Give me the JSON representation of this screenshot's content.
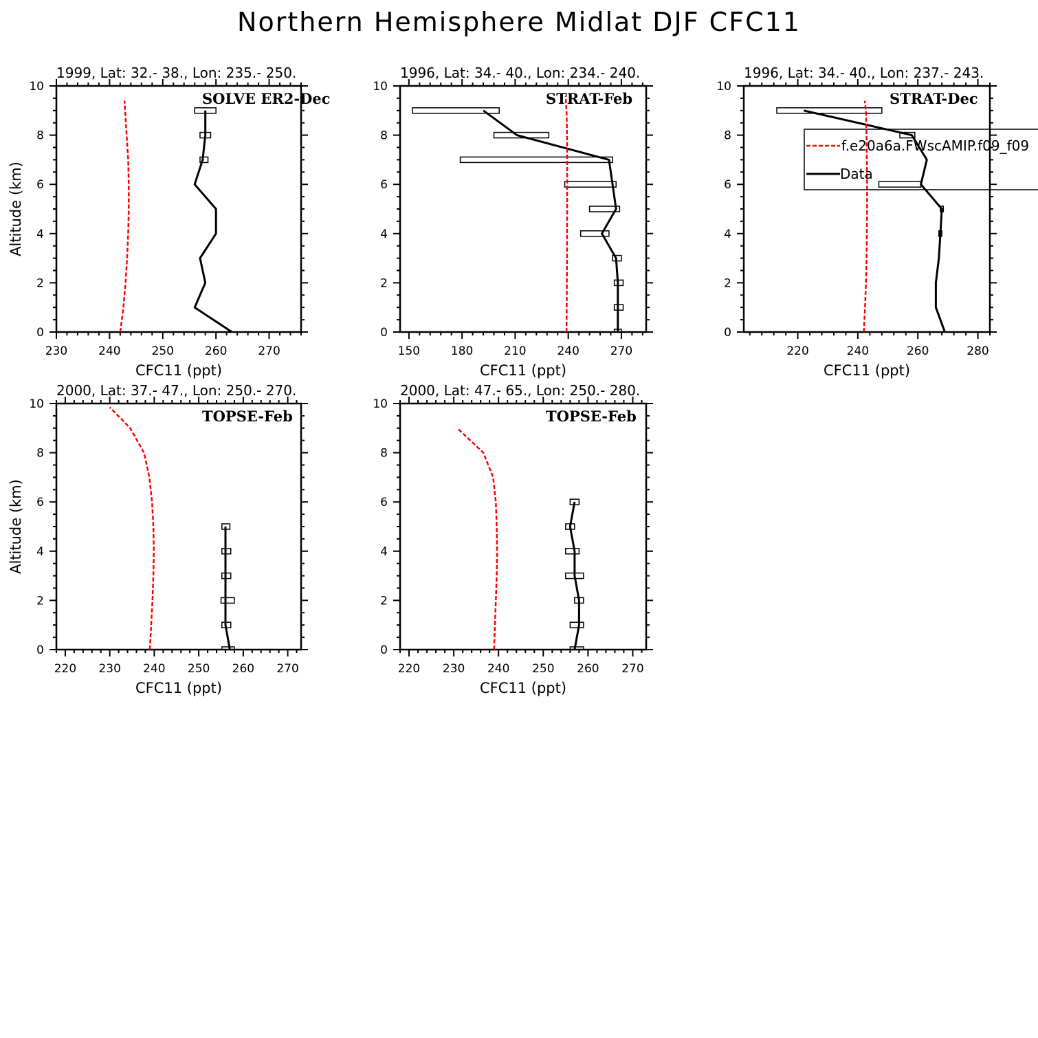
{
  "title": "Northern Hemisphere Midlat DJF CFC11",
  "legend": {
    "model_label": "f.e20a6a.FWscAMIP.f09_f09",
    "data_label": "Data"
  },
  "chart_data": [
    {
      "type": "line",
      "subtitle": "1999, Lat: 32.- 38., Lon: 235.- 250.",
      "campaign": "SOLVE ER2-Dec",
      "xlabel": "CFC11 (ppt)",
      "ylabel": "Altitude (km)",
      "xlim": [
        230,
        276
      ],
      "ylim": [
        0,
        10
      ],
      "xticks": [
        230,
        240,
        250,
        260,
        270
      ],
      "yticks": [
        0,
        2,
        4,
        6,
        8,
        10
      ],
      "model": {
        "x": [
          242.0,
          242.6,
          243.0,
          243.3,
          243.5,
          243.6,
          243.6,
          243.5,
          243.2,
          242.8
        ],
        "y": [
          0,
          1,
          2,
          3,
          4,
          5,
          6,
          7,
          8,
          9.4
        ]
      },
      "data": {
        "x": [
          263.0,
          256.0,
          258.0,
          257.0,
          260.0,
          260.0,
          256.0,
          257.5,
          258.0,
          258.0
        ],
        "y": [
          0,
          1,
          2,
          3,
          4,
          5,
          6,
          7,
          8,
          9
        ]
      },
      "error_bars": [
        {
          "y": 9,
          "lo": 256.0,
          "hi": 260.0
        },
        {
          "y": 8,
          "lo": 257.0,
          "hi": 259.0
        },
        {
          "y": 7,
          "lo": 257.0,
          "hi": 258.5
        }
      ]
    },
    {
      "type": "line",
      "subtitle": "1996, Lat: 34.- 40., Lon: 234.- 240.",
      "campaign": "STRAT-Feb",
      "xlabel": "CFC11 (ppt)",
      "ylabel": "",
      "xlim": [
        145,
        284
      ],
      "ylim": [
        0,
        10
      ],
      "xticks": [
        150,
        180,
        210,
        240,
        270
      ],
      "yticks": [
        0,
        2,
        4,
        6,
        8,
        10
      ],
      "model": {
        "x": [
          239.0,
          239.1,
          239.2,
          239.3,
          239.3,
          239.4,
          239.4,
          239.4,
          239.3,
          239.0,
          238.5
        ],
        "y": [
          0,
          1,
          2,
          3,
          4,
          5,
          6,
          7,
          8,
          9,
          9.6
        ]
      },
      "data": {
        "x": [
          268,
          268,
          268,
          267,
          259,
          267,
          265,
          263,
          211,
          192
        ],
        "y": [
          0,
          1,
          2,
          3,
          4,
          5,
          6,
          7,
          8,
          9
        ]
      },
      "error_bars": [
        {
          "y": 9,
          "lo": 152,
          "hi": 201
        },
        {
          "y": 8,
          "lo": 198,
          "hi": 229
        },
        {
          "y": 7,
          "lo": 179,
          "hi": 265
        },
        {
          "y": 6,
          "lo": 238,
          "hi": 267
        },
        {
          "y": 5,
          "lo": 252,
          "hi": 269
        },
        {
          "y": 4,
          "lo": 247,
          "hi": 263
        },
        {
          "y": 3,
          "lo": 265,
          "hi": 270
        },
        {
          "y": 2,
          "lo": 266,
          "hi": 271
        },
        {
          "y": 1,
          "lo": 266,
          "hi": 271
        },
        {
          "y": 0,
          "lo": 266,
          "hi": 270
        }
      ]
    },
    {
      "type": "line",
      "subtitle": "1996, Lat: 34.- 40., Lon: 237.- 243.",
      "campaign": "STRAT-Dec",
      "xlabel": "CFC11 (ppt)",
      "ylabel": "",
      "xlim": [
        202,
        284
      ],
      "ylim": [
        0,
        10
      ],
      "xticks": [
        220,
        240,
        260,
        280
      ],
      "yticks": [
        0,
        2,
        4,
        6,
        8,
        10
      ],
      "model": {
        "x": [
          242.0,
          242.4,
          242.7,
          242.9,
          243.0,
          243.1,
          243.1,
          243.0,
          242.9,
          242.7,
          242.3
        ],
        "y": [
          0,
          1,
          2,
          3,
          4,
          5,
          6,
          7,
          8,
          9,
          9.4
        ]
      },
      "data": {
        "x": [
          269,
          266,
          266,
          267,
          267.5,
          268,
          261,
          263,
          258,
          222
        ],
        "y": [
          0,
          1,
          2,
          3,
          4,
          5,
          6,
          7,
          8,
          9
        ]
      },
      "error_bars": [
        {
          "y": 9,
          "lo": 213,
          "hi": 248
        },
        {
          "y": 8,
          "lo": 254,
          "hi": 259
        },
        {
          "y": 6,
          "lo": 247,
          "hi": 261
        },
        {
          "y": 5,
          "lo": 267.5,
          "hi": 268.5
        },
        {
          "y": 4,
          "lo": 267,
          "hi": 268
        }
      ]
    },
    {
      "type": "line",
      "subtitle": "2000, Lat: 37.- 47., Lon: 250.- 270.",
      "campaign": "TOPSE-Feb",
      "xlabel": "CFC11 (ppt)",
      "ylabel": "Altitude (km)",
      "xlim": [
        218,
        273
      ],
      "ylim": [
        0,
        10
      ],
      "xticks": [
        220,
        230,
        240,
        250,
        260,
        270
      ],
      "yticks": [
        0,
        2,
        4,
        6,
        8,
        10
      ],
      "model": {
        "x": [
          239.0,
          239.3,
          239.6,
          239.8,
          239.9,
          239.8,
          239.5,
          238.9,
          237.7,
          234.6,
          230.0
        ],
        "y": [
          0,
          1,
          2,
          3,
          4,
          5,
          6,
          7,
          8,
          9,
          9.85
        ]
      },
      "data": {
        "x": [
          257,
          256,
          256,
          256,
          256,
          256
        ],
        "y": [
          0,
          1,
          2,
          3,
          4,
          5
        ]
      },
      "error_bars": [
        {
          "y": 5,
          "lo": 255.2,
          "hi": 257.0
        },
        {
          "y": 4,
          "lo": 255.2,
          "hi": 257.2
        },
        {
          "y": 3,
          "lo": 255.2,
          "hi": 257.2
        },
        {
          "y": 2,
          "lo": 255.0,
          "hi": 258.0
        },
        {
          "y": 1,
          "lo": 255.2,
          "hi": 257.2
        },
        {
          "y": 0,
          "lo": 255.2,
          "hi": 258.0
        }
      ]
    },
    {
      "type": "line",
      "subtitle": "2000, Lat: 47.- 65., Lon: 250.- 280.",
      "campaign": "TOPSE-Feb",
      "xlabel": "CFC11 (ppt)",
      "ylabel": "",
      "xlim": [
        218,
        273
      ],
      "ylim": [
        0,
        10
      ],
      "xticks": [
        220,
        230,
        240,
        250,
        260,
        270
      ],
      "yticks": [
        0,
        2,
        4,
        6,
        8,
        10
      ],
      "model": {
        "x": [
          239.0,
          239.2,
          239.4,
          239.6,
          239.7,
          239.6,
          239.4,
          238.8,
          236.6,
          230.8
        ],
        "y": [
          0,
          1,
          2,
          3,
          4,
          5,
          6,
          7,
          8,
          9
        ]
      },
      "data": {
        "x": [
          257,
          258,
          258,
          257,
          257,
          256,
          257
        ],
        "y": [
          0,
          1,
          2,
          3,
          4,
          5,
          6
        ]
      },
      "error_bars": [
        {
          "y": 6,
          "lo": 256.0,
          "hi": 258.0
        },
        {
          "y": 5,
          "lo": 255.0,
          "hi": 257.0
        },
        {
          "y": 4,
          "lo": 255.0,
          "hi": 258.0
        },
        {
          "y": 3,
          "lo": 255.0,
          "hi": 259.0
        },
        {
          "y": 2,
          "lo": 257.0,
          "hi": 259.0
        },
        {
          "y": 1,
          "lo": 256.0,
          "hi": 259.0
        },
        {
          "y": 0,
          "lo": 256.0,
          "hi": 259.0
        }
      ]
    }
  ]
}
